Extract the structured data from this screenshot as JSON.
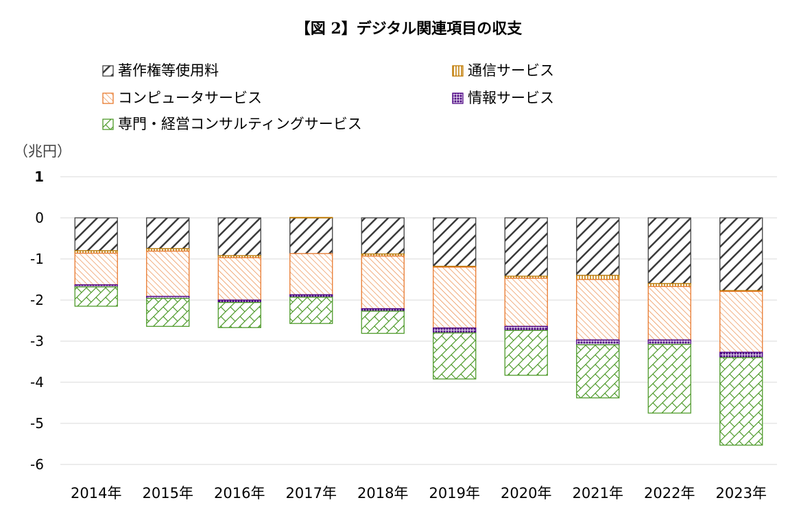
{
  "chart_data": {
    "type": "bar",
    "stacked": true,
    "title": "【図 2】デジタル関連項目の収支",
    "ylabel": "（兆円）",
    "ylim": [
      -6,
      1
    ],
    "yticks": [
      1,
      0,
      -1,
      -2,
      -3,
      -4,
      -5,
      -6
    ],
    "grid": true,
    "legend_position": "top-left",
    "categories": [
      "2014年",
      "2015年",
      "2016年",
      "2017年",
      "2018年",
      "2019年",
      "2020年",
      "2021年",
      "2022年",
      "2023年"
    ],
    "series": [
      {
        "name": "著作権等使用料",
        "color": "#404040",
        "pattern": "diag-hatch-dark",
        "values": [
          -0.8,
          -0.75,
          -0.92,
          -0.87,
          -0.88,
          -1.18,
          -1.42,
          -1.4,
          -1.6,
          -1.77
        ]
      },
      {
        "name": "通信サービス",
        "color": "#c07a00",
        "pattern": "vertical-lines",
        "values": [
          -0.06,
          -0.06,
          -0.05,
          0.01,
          -0.05,
          -0.02,
          -0.05,
          -0.1,
          -0.07,
          -0.02
        ]
      },
      {
        "name": "コンピュータサービス",
        "color": "#e8792d",
        "pattern": "diag-hatch-orange",
        "values": [
          -0.77,
          -1.1,
          -1.03,
          -1.0,
          -1.28,
          -1.48,
          -1.17,
          -1.47,
          -1.3,
          -1.48
        ]
      },
      {
        "name": "情報サービス",
        "color": "#4b0082",
        "pattern": "grid",
        "values": [
          -0.05,
          -0.05,
          -0.06,
          -0.06,
          -0.06,
          -0.12,
          -0.1,
          -0.12,
          -0.11,
          -0.13
        ]
      },
      {
        "name": "専門・経営コンサルティングサービス",
        "color": "#4e9a2a",
        "pattern": "crosshatch-green",
        "values": [
          -0.47,
          -0.68,
          -0.61,
          -0.64,
          -0.54,
          -1.12,
          -1.09,
          -1.29,
          -1.67,
          -2.13
        ]
      }
    ]
  }
}
